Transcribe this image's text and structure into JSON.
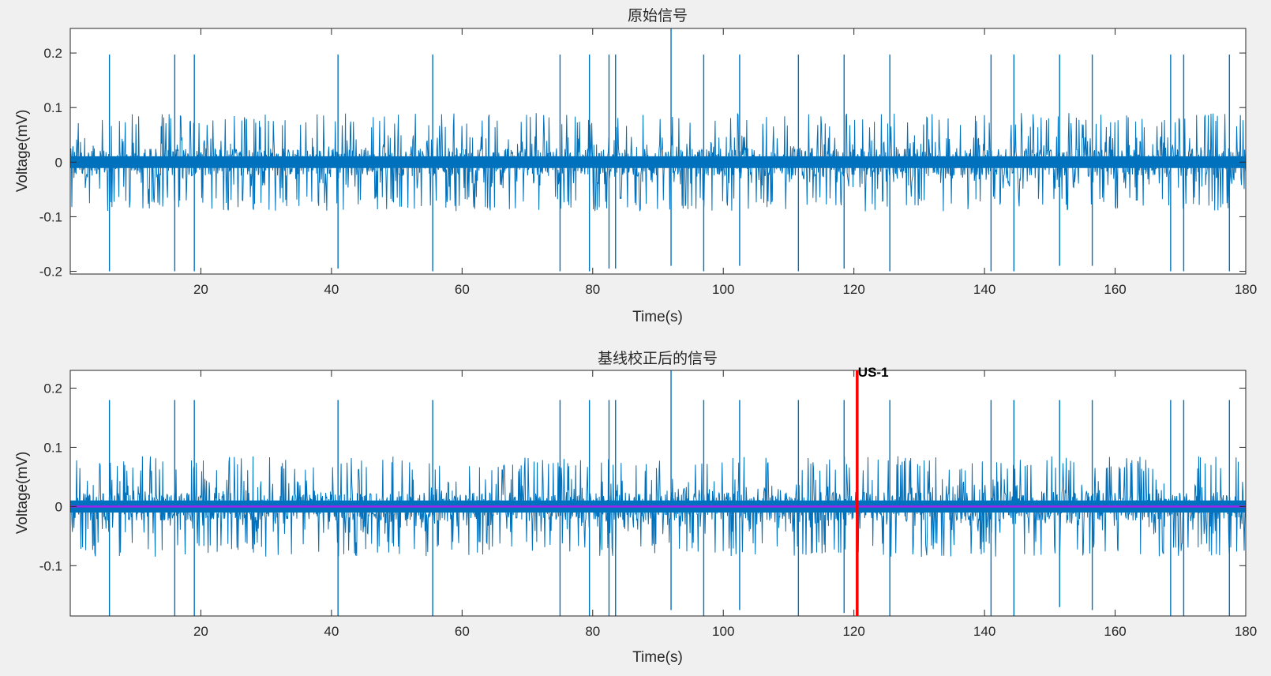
{
  "colors": {
    "figure_bg": "#f0f0f0",
    "axes_bg": "#ffffff",
    "signal": "#0072bd",
    "baseline": "#a020f0",
    "marker": "#ff0000"
  },
  "chart_data": [
    {
      "type": "line",
      "title": "原始信号",
      "xlabel": "Time(s)",
      "ylabel": "Voltage(mV)",
      "xlim": [
        0,
        180
      ],
      "ylim": [
        -0.205,
        0.245
      ],
      "xticks": [
        20,
        40,
        60,
        80,
        100,
        120,
        140,
        160,
        180
      ],
      "yticks": [
        -0.2,
        -0.1,
        0,
        0.1,
        0.2
      ],
      "ytick_labels": [
        "-0.2",
        "-0.1",
        "0",
        "0.1",
        "0.2"
      ],
      "series": [
        {
          "description_of_signal": "dense noisy trace, typical amplitude ±0.09 with large spikes",
          "typical_amplitude": 0.09,
          "spikes": [
            {
              "x": 6.0,
              "max": 0.197,
              "min": -0.2
            },
            {
              "x": 16.0,
              "max": 0.197,
              "min": -0.2
            },
            {
              "x": 19.0,
              "max": 0.197,
              "min": -0.2
            },
            {
              "x": 41.0,
              "max": 0.197,
              "min": -0.195
            },
            {
              "x": 55.5,
              "max": 0.197,
              "min": -0.2
            },
            {
              "x": 75.0,
              "max": 0.197,
              "min": -0.2
            },
            {
              "x": 79.5,
              "max": 0.197,
              "min": -0.2
            },
            {
              "x": 82.5,
              "max": 0.197,
              "min": -0.195
            },
            {
              "x": 83.5,
              "max": 0.197,
              "min": -0.195
            },
            {
              "x": 92.0,
              "max": 0.245,
              "min": -0.19
            },
            {
              "x": 97.0,
              "max": 0.197,
              "min": -0.2
            },
            {
              "x": 102.5,
              "max": 0.197,
              "min": -0.19
            },
            {
              "x": 111.5,
              "max": 0.197,
              "min": -0.2
            },
            {
              "x": 118.5,
              "max": 0.197,
              "min": -0.195
            },
            {
              "x": 125.5,
              "max": 0.197,
              "min": -0.2
            },
            {
              "x": 141.0,
              "max": 0.197,
              "min": -0.2
            },
            {
              "x": 144.5,
              "max": 0.197,
              "min": -0.2
            },
            {
              "x": 151.5,
              "max": 0.197,
              "min": -0.19
            },
            {
              "x": 156.5,
              "max": 0.197,
              "min": -0.19
            },
            {
              "x": 168.5,
              "max": 0.197,
              "min": -0.2
            },
            {
              "x": 170.5,
              "max": 0.197,
              "min": -0.2
            },
            {
              "x": 177.5,
              "max": 0.197,
              "min": -0.2
            }
          ]
        }
      ]
    },
    {
      "type": "line",
      "title": "基线校正后的信号",
      "xlabel": "Time(s)",
      "ylabel": "Voltage(mV)",
      "xlim": [
        0,
        180
      ],
      "ylim": [
        -0.185,
        0.23
      ],
      "xticks": [
        20,
        40,
        60,
        80,
        100,
        120,
        140,
        160,
        180
      ],
      "yticks": [
        -0.1,
        0,
        0.1,
        0.2
      ],
      "ytick_labels": [
        "-0.1",
        "0",
        "0.1",
        "0.2"
      ],
      "series": [
        {
          "typical_amplitude": 0.085,
          "spikes": [
            {
              "x": 6.0,
              "max": 0.18,
              "min": -0.185
            },
            {
              "x": 16.0,
              "max": 0.18,
              "min": -0.185
            },
            {
              "x": 19.0,
              "max": 0.18,
              "min": -0.185
            },
            {
              "x": 41.0,
              "max": 0.18,
              "min": -0.185
            },
            {
              "x": 55.5,
              "max": 0.18,
              "min": -0.185
            },
            {
              "x": 75.0,
              "max": 0.18,
              "min": -0.185
            },
            {
              "x": 79.5,
              "max": 0.18,
              "min": -0.185
            },
            {
              "x": 82.5,
              "max": 0.18,
              "min": -0.185
            },
            {
              "x": 83.5,
              "max": 0.18,
              "min": -0.185
            },
            {
              "x": 92.0,
              "max": 0.23,
              "min": -0.175
            },
            {
              "x": 97.0,
              "max": 0.18,
              "min": -0.185
            },
            {
              "x": 102.5,
              "max": 0.18,
              "min": -0.175
            },
            {
              "x": 111.5,
              "max": 0.18,
              "min": -0.185
            },
            {
              "x": 118.5,
              "max": 0.18,
              "min": -0.18
            },
            {
              "x": 125.5,
              "max": 0.18,
              "min": -0.185
            },
            {
              "x": 141.0,
              "max": 0.18,
              "min": -0.185
            },
            {
              "x": 144.5,
              "max": 0.18,
              "min": -0.185
            },
            {
              "x": 151.5,
              "max": 0.18,
              "min": -0.17
            },
            {
              "x": 156.5,
              "max": 0.18,
              "min": -0.175
            },
            {
              "x": 168.5,
              "max": 0.18,
              "min": -0.185
            },
            {
              "x": 170.5,
              "max": 0.18,
              "min": -0.185
            },
            {
              "x": 177.5,
              "max": 0.18,
              "min": -0.185
            }
          ]
        },
        {
          "type": "horizontal_line",
          "y": 0
        }
      ],
      "annotations": [
        {
          "type": "vertical_line",
          "x": 120.5,
          "label": "US-1"
        }
      ]
    }
  ]
}
